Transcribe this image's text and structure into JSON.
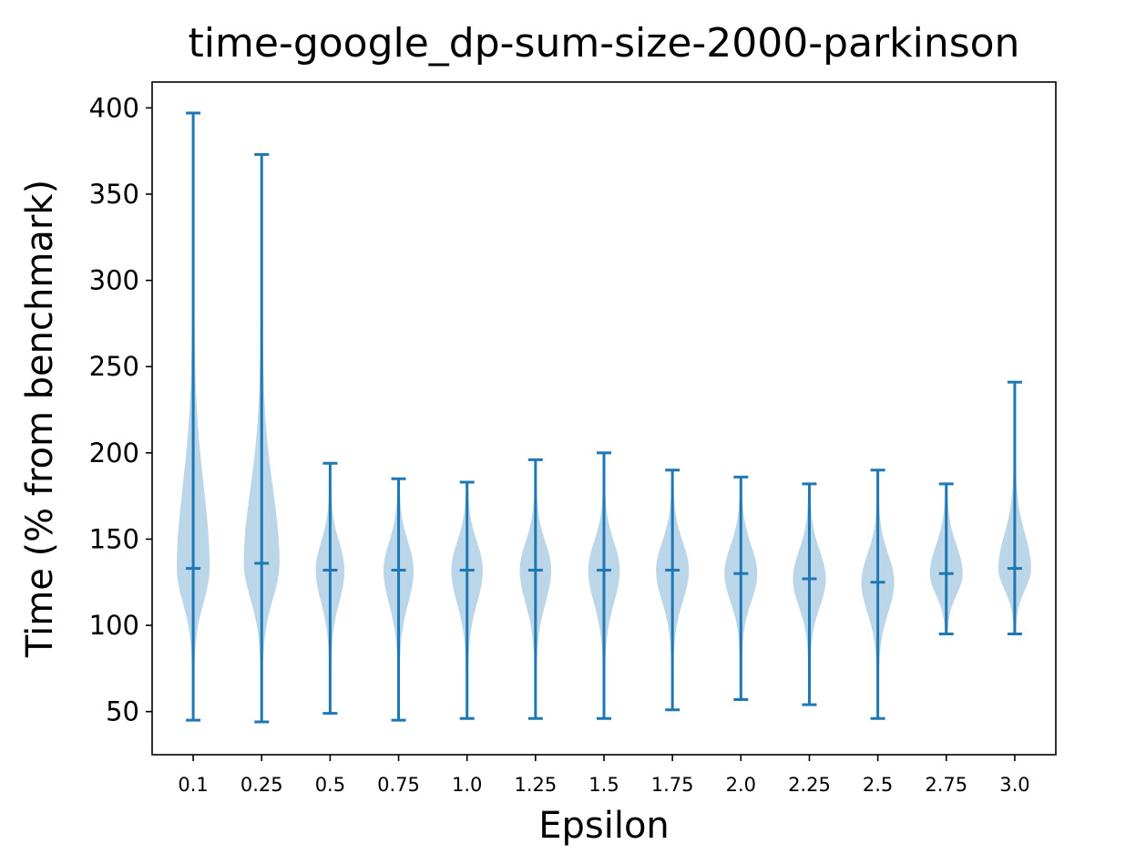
{
  "chart_data": {
    "type": "violin",
    "title": "time-google_dp-sum-size-2000-parkinson",
    "xlabel": "Epsilon",
    "ylabel": "Time (% from benchmark)",
    "ylim": [
      25,
      415
    ],
    "yticks": [
      50,
      100,
      150,
      200,
      250,
      300,
      350,
      400
    ],
    "grid": false,
    "legend": "none",
    "colors": {
      "line": "#1f77b4",
      "body": "#1f77b4"
    },
    "categories": [
      "0.1",
      "0.25",
      "0.5",
      "0.75",
      "1.0",
      "1.25",
      "1.5",
      "1.75",
      "2.0",
      "2.25",
      "2.5",
      "2.75",
      "3.0"
    ],
    "violins": [
      {
        "label": "0.1",
        "min": 45,
        "max": 397,
        "median": 133,
        "halfwidth": 0.24
      },
      {
        "label": "0.25",
        "min": 44,
        "max": 373,
        "median": 136,
        "halfwidth": 0.26
      },
      {
        "label": "0.5",
        "min": 49,
        "max": 194,
        "median": 132,
        "halfwidth": 0.21
      },
      {
        "label": "0.75",
        "min": 45,
        "max": 185,
        "median": 132,
        "halfwidth": 0.22
      },
      {
        "label": "1.0",
        "min": 46,
        "max": 183,
        "median": 132,
        "halfwidth": 0.23
      },
      {
        "label": "1.25",
        "min": 46,
        "max": 196,
        "median": 132,
        "halfwidth": 0.23
      },
      {
        "label": "1.5",
        "min": 46,
        "max": 200,
        "median": 132,
        "halfwidth": 0.23
      },
      {
        "label": "1.75",
        "min": 51,
        "max": 190,
        "median": 132,
        "halfwidth": 0.24
      },
      {
        "label": "2.0",
        "min": 57,
        "max": 186,
        "median": 130,
        "halfwidth": 0.24
      },
      {
        "label": "2.25",
        "min": 54,
        "max": 182,
        "median": 127,
        "halfwidth": 0.24
      },
      {
        "label": "2.5",
        "min": 46,
        "max": 190,
        "median": 125,
        "halfwidth": 0.24
      },
      {
        "label": "2.75",
        "min": 95,
        "max": 182,
        "median": 130,
        "halfwidth": 0.24
      },
      {
        "label": "3.0",
        "min": 95,
        "max": 241,
        "median": 133,
        "halfwidth": 0.24
      }
    ]
  }
}
